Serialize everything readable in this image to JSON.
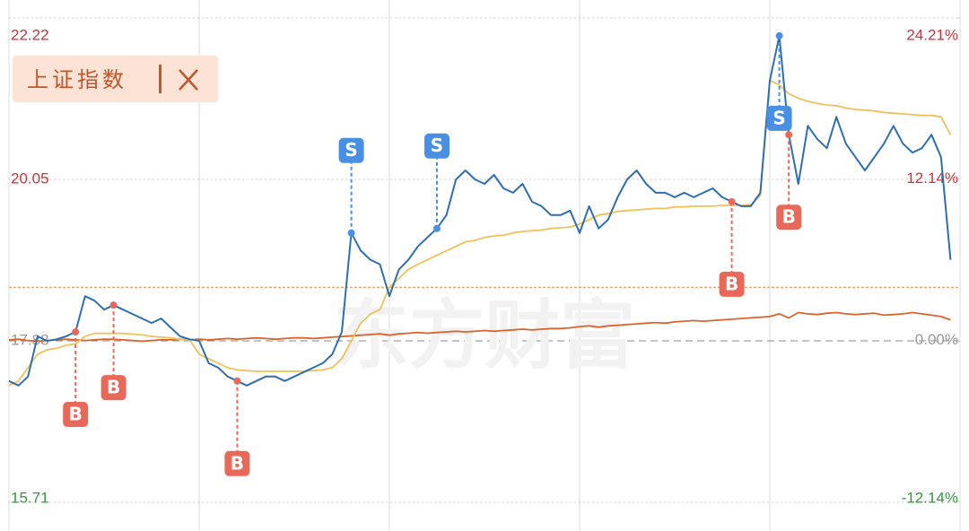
{
  "chart_data": {
    "type": "line",
    "watermark": "东方财富",
    "x": [
      0,
      1,
      2,
      3,
      4,
      5,
      6,
      7,
      8,
      9,
      10,
      11,
      12,
      13,
      14,
      15,
      16,
      17,
      18,
      19,
      20,
      21,
      22,
      23,
      24,
      25,
      26,
      27,
      28,
      29,
      30,
      31,
      32,
      33,
      34,
      35,
      36,
      37,
      38,
      39,
      40,
      41,
      42,
      43,
      44,
      45,
      46,
      47,
      48,
      49,
      50,
      51,
      52,
      53,
      54,
      55,
      56,
      57,
      58,
      59,
      60,
      61,
      62,
      63,
      64,
      65,
      66,
      67,
      68,
      69,
      70,
      71,
      72,
      73,
      74,
      75,
      76,
      77,
      78,
      79,
      80,
      81,
      82,
      83,
      84,
      85,
      86,
      87,
      88,
      89,
      90,
      91,
      92,
      93,
      94,
      95,
      96,
      97,
      98,
      99
    ],
    "xlim": [
      0,
      100
    ],
    "xticks": [
      20,
      40,
      60,
      80
    ],
    "ylim": [
      15.71,
      22.22
    ],
    "yticks": [
      15.71,
      17.88,
      20.05,
      22.22
    ],
    "y2lim": [
      -12.14,
      24.21
    ],
    "y2ticks": [
      {
        "value": -12.14,
        "label": "-12.14%"
      },
      {
        "value": 0,
        "label": "0.00%"
      },
      {
        "value": 12.14,
        "label": "12.14%"
      },
      {
        "value": 24.21,
        "label": "24.21%"
      }
    ],
    "baseline": 17.88,
    "current_line": 18.6,
    "series": [
      {
        "color": "#2f6fb0",
        "values": [
          17.34,
          17.28,
          17.4,
          17.94,
          17.88,
          17.9,
          17.94,
          18.0,
          18.48,
          18.42,
          18.3,
          18.36,
          18.3,
          18.24,
          18.18,
          18.12,
          18.18,
          18.06,
          17.94,
          17.9,
          17.88,
          17.58,
          17.52,
          17.4,
          17.34,
          17.28,
          17.34,
          17.4,
          17.4,
          17.34,
          17.4,
          17.46,
          17.52,
          17.58,
          17.7,
          18.0,
          19.33,
          19.09,
          18.97,
          18.91,
          18.48,
          18.84,
          18.97,
          19.15,
          19.27,
          19.39,
          19.57,
          20.05,
          20.17,
          20.05,
          19.99,
          20.11,
          19.93,
          19.87,
          19.99,
          19.75,
          19.69,
          19.57,
          19.57,
          19.63,
          19.33,
          19.69,
          19.39,
          19.51,
          19.81,
          20.05,
          20.17,
          19.99,
          19.87,
          19.87,
          19.81,
          19.87,
          19.81,
          19.87,
          19.93,
          19.81,
          19.75,
          19.69,
          19.69,
          19.87,
          21.38,
          21.98,
          20.65,
          19.99,
          20.77,
          20.59,
          20.47,
          20.89,
          20.53,
          20.35,
          20.17,
          20.35,
          20.53,
          20.77,
          20.53,
          20.41,
          20.47,
          20.65,
          20.35,
          18.97
        ]
      },
      {
        "color": "#f0c05a",
        "values": [
          17.28,
          17.34,
          17.52,
          17.7,
          17.76,
          17.78,
          17.82,
          17.84,
          17.94,
          17.98,
          17.98,
          17.98,
          17.98,
          17.97,
          17.96,
          17.94,
          17.93,
          17.92,
          17.9,
          17.89,
          17.7,
          17.64,
          17.58,
          17.52,
          17.49,
          17.48,
          17.47,
          17.47,
          17.47,
          17.47,
          17.47,
          17.47,
          17.48,
          17.49,
          17.52,
          17.64,
          17.88,
          18.12,
          18.24,
          18.3,
          18.6,
          18.72,
          18.84,
          18.91,
          18.97,
          19.03,
          19.09,
          19.15,
          19.21,
          19.23,
          19.27,
          19.29,
          19.3,
          19.33,
          19.35,
          19.36,
          19.37,
          19.39,
          19.4,
          19.41,
          19.45,
          19.51,
          19.57,
          19.59,
          19.62,
          19.63,
          19.64,
          19.65,
          19.66,
          19.66,
          19.68,
          19.68,
          19.69,
          19.69,
          19.69,
          19.7,
          19.7,
          19.7,
          19.71,
          19.83,
          21.38,
          21.32,
          21.2,
          21.14,
          21.1,
          21.07,
          21.05,
          21.04,
          21.01,
          20.99,
          20.98,
          20.97,
          20.95,
          20.94,
          20.93,
          20.92,
          20.91,
          20.91,
          20.89,
          20.65
        ]
      },
      {
        "name": "上证指数",
        "color": "#d9652b",
        "axis": "y2",
        "values": [
          0.05,
          0.1,
          0.0,
          -0.05,
          0.0,
          0.05,
          0.1,
          0.05,
          0.0,
          0.05,
          0.1,
          0.1,
          0.05,
          0.0,
          -0.05,
          0.0,
          0.05,
          0.05,
          0.1,
          0.05,
          0.1,
          0.05,
          0.1,
          0.15,
          0.1,
          0.15,
          0.2,
          0.15,
          0.1,
          0.15,
          0.2,
          0.2,
          0.15,
          0.2,
          0.25,
          0.3,
          0.35,
          0.4,
          0.45,
          0.5,
          0.4,
          0.5,
          0.55,
          0.6,
          0.55,
          0.6,
          0.65,
          0.7,
          0.65,
          0.7,
          0.75,
          0.7,
          0.75,
          0.8,
          0.85,
          0.8,
          0.85,
          0.9,
          0.9,
          0.95,
          1.05,
          1.1,
          1.0,
          1.1,
          1.15,
          1.2,
          1.25,
          1.3,
          1.35,
          1.3,
          1.4,
          1.45,
          1.5,
          1.45,
          1.5,
          1.55,
          1.6,
          1.65,
          1.7,
          1.75,
          1.8,
          2.0,
          1.7,
          2.1,
          2.0,
          1.95,
          2.05,
          2.1,
          2.0,
          1.95,
          2.0,
          2.05,
          1.9,
          1.95,
          2.0,
          2.1,
          2.0,
          1.9,
          1.8,
          1.55
        ]
      }
    ],
    "trades": [
      {
        "label": "B",
        "index": 7,
        "position": "below",
        "color": "#e8695a"
      },
      {
        "label": "B",
        "index": 11,
        "position": "below",
        "color": "#e8695a"
      },
      {
        "label": "B",
        "index": 24,
        "position": "below",
        "color": "#e8695a"
      },
      {
        "label": "S",
        "index": 36,
        "position": "above",
        "color": "#4a90e2"
      },
      {
        "label": "S",
        "index": 45,
        "position": "above",
        "color": "#4a90e2"
      },
      {
        "label": "B",
        "index": 76,
        "position": "below",
        "color": "#e8695a"
      },
      {
        "label": "S",
        "index": 81,
        "position": "below",
        "color": "#4a90e2"
      },
      {
        "label": "B",
        "index": 82,
        "position": "below",
        "color": "#e8695a"
      }
    ]
  }
}
